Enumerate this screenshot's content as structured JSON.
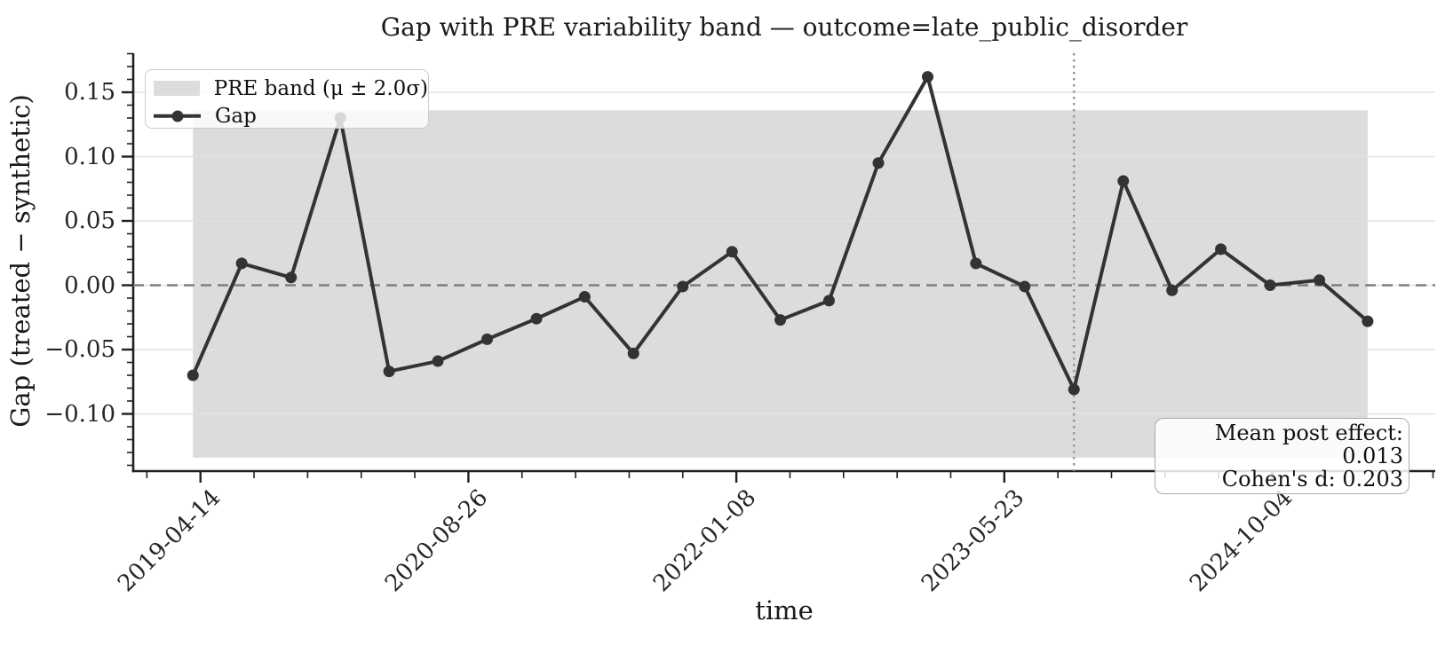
{
  "colors": {
    "line": "#333333",
    "band": "#dcdcdc",
    "zero_dash": "#7f7f7f",
    "treatment_dotted": "#9a9a9a",
    "grid": "#e2e2e2",
    "axis": "#202020",
    "text": "#1a1a1a"
  },
  "chart_data": {
    "type": "line",
    "title": "Gap with PRE variability band — outcome=late_public_disorder",
    "xlabel": "time",
    "ylabel": "Gap (treated − synthetic)",
    "x_tick_labels": [
      "2019-04-14",
      "2020-08-26",
      "2022-01-08",
      "2023-05-23",
      "2024-10-04"
    ],
    "y_tick_values": [
      0.15,
      0.1,
      0.05,
      0.0,
      -0.05,
      -0.1
    ],
    "y_tick_labels": [
      "0.15",
      "0.10",
      "0.05",
      "0.00",
      "−0.05",
      "−0.10"
    ],
    "ylim": [
      -0.144,
      0.18
    ],
    "grid": "horizontal-major",
    "legend_position": "upper-left",
    "series": [
      {
        "name": "Gap",
        "x": [
          "2019-03-31",
          "2019-06-30",
          "2019-09-30",
          "2019-12-31",
          "2020-03-31",
          "2020-06-30",
          "2020-09-30",
          "2020-12-31",
          "2021-03-31",
          "2021-06-30",
          "2021-09-30",
          "2021-12-31",
          "2022-03-31",
          "2022-06-30",
          "2022-09-30",
          "2022-12-31",
          "2023-03-31",
          "2023-06-30",
          "2023-09-30",
          "2023-12-31",
          "2024-03-31",
          "2024-06-30",
          "2024-09-30",
          "2024-12-31",
          "2025-03-31"
        ],
        "y": [
          -0.07,
          0.017,
          0.006,
          0.13,
          -0.067,
          -0.059,
          -0.042,
          -0.026,
          -0.009,
          -0.053,
          -0.001,
          0.026,
          -0.027,
          -0.012,
          0.095,
          0.162,
          0.017,
          -0.001,
          -0.081,
          0.081,
          -0.004,
          0.028,
          0.0,
          0.004,
          -0.028
        ]
      }
    ],
    "pre_band": {
      "label": "PRE band (μ ± 2.0σ)",
      "upper": 0.136,
      "lower": -0.134
    },
    "zero_line_y": 0.0,
    "treatment_line_x": "2023-09-30",
    "annotation_lines": [
      "Mean post effect: 0.013",
      "Cohen's d: 0.203"
    ]
  }
}
